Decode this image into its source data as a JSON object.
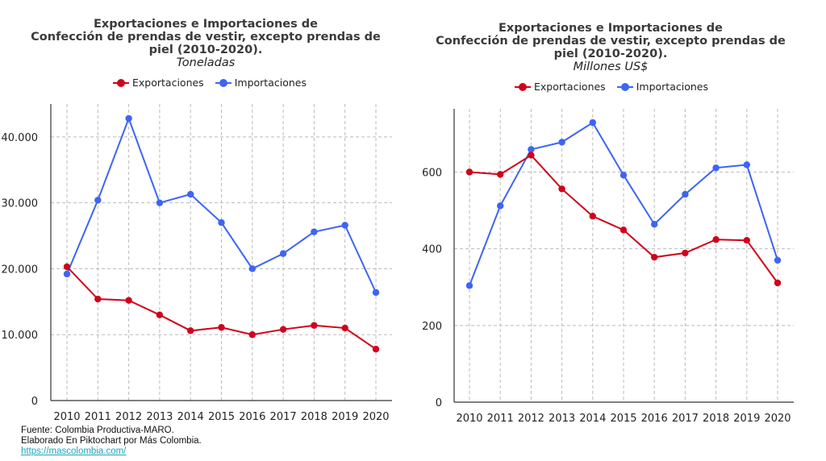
{
  "colors": {
    "exportaciones": "#d0021b",
    "importaciones": "#3d64f5",
    "grid": "#bbbbbb",
    "axis": "#333333"
  },
  "chart_data": [
    {
      "type": "line",
      "title": "Exportaciones e Importaciones de Confección de prendas de vestir, excepto prendas de piel (2010-2020).",
      "title_lines": [
        "Exportaciones e Importaciones de",
        "Confección de prendas de vestir, excepto prendas de",
        "piel (2010-2020)."
      ],
      "subtitle": "Toneladas",
      "legend": "top",
      "grid": true,
      "categories": [
        "2010",
        "2011",
        "2012",
        "2013",
        "2014",
        "2015",
        "2016",
        "2017",
        "2018",
        "2019",
        "2020"
      ],
      "ylim": [
        0,
        45000
      ],
      "yticks": [
        0,
        10000,
        20000,
        30000,
        40000
      ],
      "ytick_labels": [
        "0",
        "10.000",
        "20.000",
        "30.000",
        "40.000"
      ],
      "series": [
        {
          "name": "Exportaciones",
          "color": "#d0021b",
          "values": [
            20300,
            15400,
            15200,
            13000,
            10600,
            11100,
            10000,
            10800,
            11400,
            11000,
            7800
          ]
        },
        {
          "name": "Importaciones",
          "color": "#3d64f5",
          "values": [
            19200,
            30400,
            42800,
            30000,
            31300,
            27000,
            20000,
            22300,
            25600,
            26600,
            16400
          ]
        }
      ]
    },
    {
      "type": "line",
      "title": "Exportaciones e Importaciones de Confección de prendas de vestir, excepto prendas de piel (2010-2020).",
      "title_lines": [
        "Exportaciones e Importaciones de",
        "Confección de prendas de vestir, excepto prendas de",
        "piel (2010-2020)."
      ],
      "subtitle": "Millones US$",
      "legend": "top",
      "grid": true,
      "categories": [
        "2010",
        "2011",
        "2012",
        "2013",
        "2014",
        "2015",
        "2016",
        "2017",
        "2018",
        "2019",
        "2020"
      ],
      "ylim": [
        0,
        765
      ],
      "yticks": [
        0,
        200,
        400,
        600
      ],
      "ytick_labels": [
        "0",
        "200",
        "400",
        "600"
      ],
      "series": [
        {
          "name": "Exportaciones",
          "color": "#d0021b",
          "values": [
            600,
            594,
            644,
            556,
            485,
            449,
            378,
            389,
            424,
            422,
            311
          ]
        },
        {
          "name": "Importaciones",
          "color": "#3d64f5",
          "values": [
            304,
            512,
            659,
            678,
            729,
            592,
            464,
            542,
            611,
            619,
            370
          ]
        }
      ]
    }
  ],
  "footer": {
    "source": "Fuente: Colombia Productiva-MARO.",
    "credit": "Elaborado En Piktochart por Más Colombia.",
    "link": "https://mascolombia.com/"
  }
}
